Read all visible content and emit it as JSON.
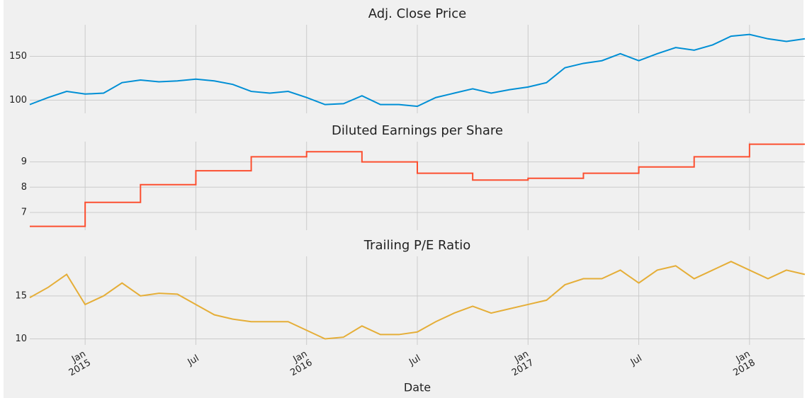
{
  "chart_data": [
    {
      "type": "line",
      "title": "Adj. Close Price",
      "color": "#008fd5",
      "x": [
        "2014-10",
        "2014-11",
        "2014-12",
        "2015-01",
        "2015-02",
        "2015-03",
        "2015-04",
        "2015-05",
        "2015-06",
        "2015-07",
        "2015-08",
        "2015-09",
        "2015-10",
        "2015-11",
        "2015-12",
        "2016-01",
        "2016-02",
        "2016-03",
        "2016-04",
        "2016-05",
        "2016-06",
        "2016-07",
        "2016-08",
        "2016-09",
        "2016-10",
        "2016-11",
        "2016-12",
        "2017-01",
        "2017-02",
        "2017-03",
        "2017-04",
        "2017-05",
        "2017-06",
        "2017-07",
        "2017-08",
        "2017-09",
        "2017-10",
        "2017-11",
        "2017-12",
        "2018-01",
        "2018-02",
        "2018-03",
        "2018-04"
      ],
      "values": [
        95,
        103,
        110,
        107,
        108,
        120,
        123,
        121,
        122,
        124,
        122,
        118,
        110,
        108,
        110,
        103,
        95,
        96,
        105,
        95,
        95,
        93,
        103,
        108,
        113,
        108,
        112,
        115,
        120,
        137,
        142,
        145,
        153,
        145,
        153,
        160,
        157,
        163,
        173,
        175,
        170,
        167,
        170
      ],
      "xlim": [
        "2014-10",
        "2018-04"
      ],
      "ylim": [
        85,
        186
      ],
      "yticks": [
        100,
        150
      ]
    },
    {
      "type": "step",
      "title": "Diluted Earnings per Share",
      "color": "#fc4f30",
      "x": [
        "2014-10",
        "2014-11",
        "2014-12",
        "2015-01",
        "2015-02",
        "2015-03",
        "2015-04",
        "2015-05",
        "2015-06",
        "2015-07",
        "2015-08",
        "2015-09",
        "2015-10",
        "2015-11",
        "2015-12",
        "2016-01",
        "2016-02",
        "2016-03",
        "2016-04",
        "2016-05",
        "2016-06",
        "2016-07",
        "2016-08",
        "2016-09",
        "2016-10",
        "2016-11",
        "2016-12",
        "2017-01",
        "2017-02",
        "2017-03",
        "2017-04",
        "2017-05",
        "2017-06",
        "2017-07",
        "2017-08",
        "2017-09",
        "2017-10",
        "2017-11",
        "2017-12",
        "2018-01",
        "2018-02",
        "2018-03",
        "2018-04"
      ],
      "values": [
        6.45,
        6.45,
        6.45,
        7.4,
        7.4,
        7.4,
        8.1,
        8.1,
        8.1,
        8.65,
        8.65,
        8.65,
        9.2,
        9.2,
        9.2,
        9.4,
        9.4,
        9.4,
        9.0,
        9.0,
        9.0,
        8.55,
        8.55,
        8.55,
        8.28,
        8.28,
        8.28,
        8.35,
        8.35,
        8.35,
        8.55,
        8.55,
        8.55,
        8.8,
        8.8,
        8.8,
        9.2,
        9.2,
        9.2,
        9.7,
        9.7,
        9.7,
        9.7
      ],
      "xlim": [
        "2014-10",
        "2018-04"
      ],
      "ylim": [
        6.3,
        9.8
      ],
      "yticks": [
        7,
        8,
        9
      ]
    },
    {
      "type": "line",
      "title": "Trailing P/E Ratio",
      "color": "#e5ae38",
      "xlabel": "Date",
      "x": [
        "2014-10",
        "2014-11",
        "2014-12",
        "2015-01",
        "2015-02",
        "2015-03",
        "2015-04",
        "2015-05",
        "2015-06",
        "2015-07",
        "2015-08",
        "2015-09",
        "2015-10",
        "2015-11",
        "2015-12",
        "2016-01",
        "2016-02",
        "2016-03",
        "2016-04",
        "2016-05",
        "2016-06",
        "2016-07",
        "2016-08",
        "2016-09",
        "2016-10",
        "2016-11",
        "2016-12",
        "2017-01",
        "2017-02",
        "2017-03",
        "2017-04",
        "2017-05",
        "2017-06",
        "2017-07",
        "2017-08",
        "2017-09",
        "2017-10",
        "2017-11",
        "2017-12",
        "2018-01",
        "2018-02",
        "2018-03",
        "2018-04"
      ],
      "values": [
        14.8,
        16,
        17.5,
        14,
        15,
        16.5,
        15,
        15.3,
        15.2,
        14,
        12.8,
        12.3,
        12,
        12,
        12,
        11,
        10,
        10.2,
        11.5,
        10.5,
        10.5,
        10.8,
        12,
        13,
        13.8,
        13,
        13.5,
        14,
        14.5,
        16.3,
        17,
        17,
        18,
        16.5,
        18,
        18.5,
        17,
        18,
        19,
        18,
        17,
        18,
        17.5
      ],
      "xlim": [
        "2014-10",
        "2018-04"
      ],
      "ylim": [
        9.3,
        19.6
      ],
      "yticks": [
        10,
        15
      ],
      "xticks": [
        {
          "value": "2015-01",
          "label": "Jan\n2015"
        },
        {
          "value": "2015-07",
          "label": "Jul"
        },
        {
          "value": "2016-01",
          "label": "Jan\n2016"
        },
        {
          "value": "2016-07",
          "label": "Jul"
        },
        {
          "value": "2017-01",
          "label": "Jan\n2017"
        },
        {
          "value": "2017-07",
          "label": "Jul"
        },
        {
          "value": "2018-01",
          "label": "Jan\n2018"
        }
      ]
    }
  ]
}
